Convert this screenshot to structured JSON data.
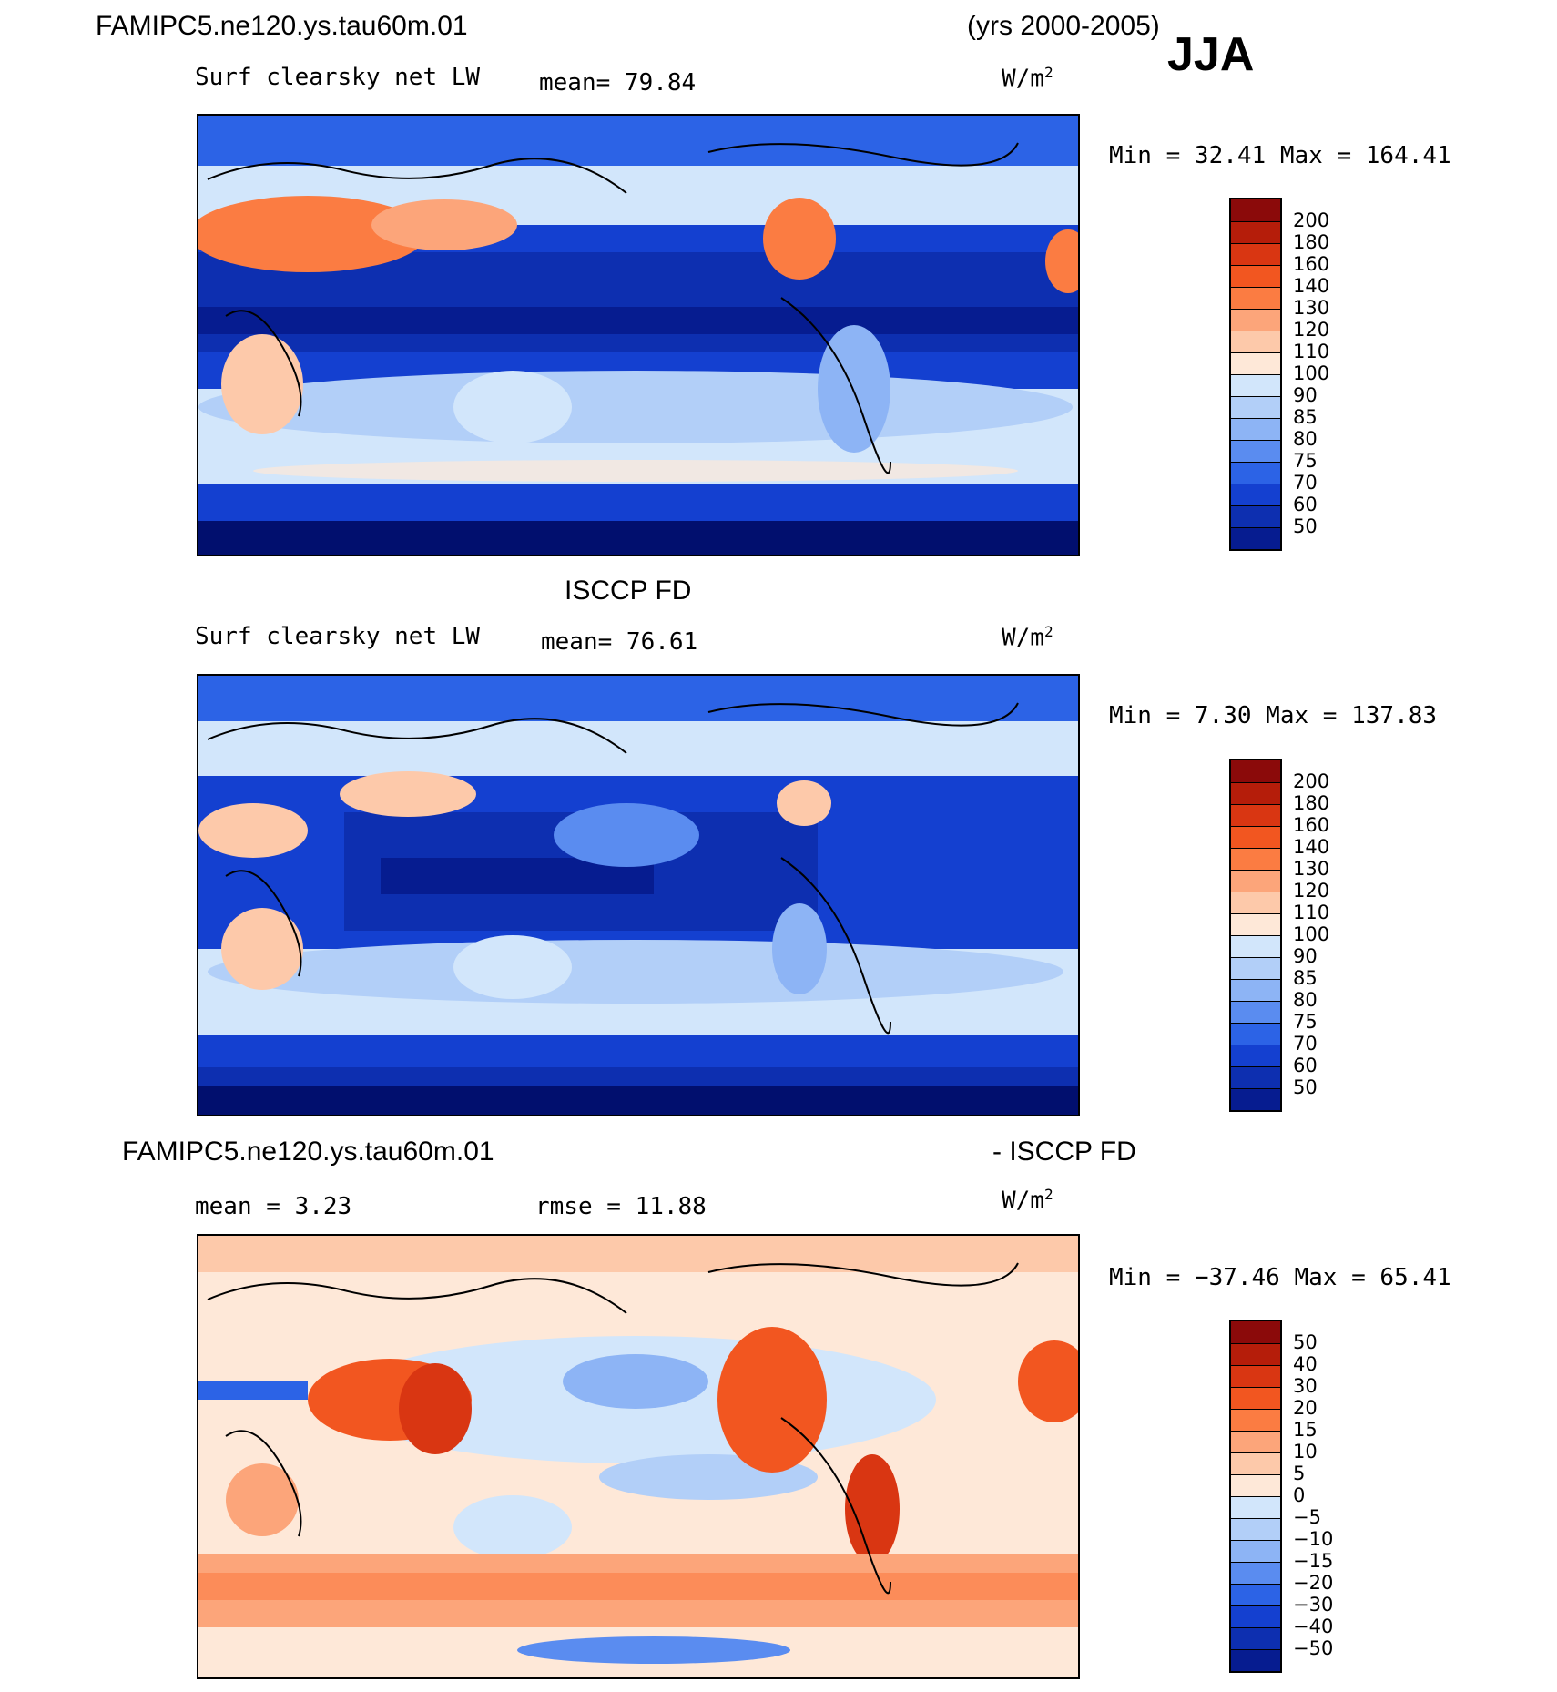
{
  "header": {
    "case_name": "FAMIPC5.ne120.ys.tau60m.01",
    "years": "(yrs 2000-2005)",
    "season": "JJA"
  },
  "panels": [
    {
      "title": "",
      "variable": "Surf clearsky net LW",
      "mean_text": "mean=   79.84",
      "units": "W/m",
      "units_sup": "2",
      "minmax_text": "Min =   32.41  Max = 164.41"
    },
    {
      "title": "ISCCP FD",
      "variable": "Surf clearsky net LW",
      "mean_text": "mean=   76.61",
      "units": "W/m",
      "units_sup": "2",
      "minmax_text": "Min =    7.30  Max = 137.83"
    },
    {
      "title_left": "FAMIPC5.ne120.ys.tau60m.01",
      "title_right": "- ISCCP FD",
      "mean_text": "mean =    3.23",
      "rmse_text": "rmse =   11.88",
      "units": "W/m",
      "units_sup": "2",
      "minmax_text": "Min = −37.46  Max =   65.41"
    }
  ],
  "colorbars": {
    "abs_labels": [
      "200",
      "180",
      "160",
      "140",
      "130",
      "120",
      "110",
      "100",
      "90",
      "85",
      "80",
      "75",
      "70",
      "60",
      "50"
    ],
    "diff_labels": [
      "50",
      "40",
      "30",
      "20",
      "15",
      "10",
      "5",
      "0",
      "−5",
      "−10",
      "−15",
      "−20",
      "−30",
      "−40",
      "−50"
    ],
    "colors": [
      "#8b0a0a",
      "#b51d0a",
      "#d93612",
      "#f25620",
      "#fb7c42",
      "#fca57a",
      "#fdc9aa",
      "#fee8d8",
      "#ffffff",
      "#d2e6fb",
      "#b2cff8",
      "#8db4f5",
      "#5a8cf0",
      "#2c63e6",
      "#1440d0",
      "#0d2fb0",
      "#061c90",
      "#010f6e"
    ],
    "abs_colors": [
      "#8b0a0a",
      "#b51d0a",
      "#d93612",
      "#f25620",
      "#fb7c42",
      "#fca57a",
      "#fdc9aa",
      "#fee8d8",
      "#d2e6fb",
      "#b2cff8",
      "#8db4f5",
      "#5a8cf0",
      "#2c63e6",
      "#1440d0",
      "#0d2fb0",
      "#061c90"
    ],
    "diff_colors": [
      "#8b0a0a",
      "#b51d0a",
      "#d93612",
      "#f25620",
      "#fb7c42",
      "#fca57a",
      "#fdc9aa",
      "#fee8d8",
      "#d2e6fb",
      "#b2cff8",
      "#8db4f5",
      "#5a8cf0",
      "#2c63e6",
      "#1440d0",
      "#0d2fb0",
      "#061c90"
    ]
  },
  "chart_data": [
    {
      "type": "heatmap",
      "title": "FAMIPC5.ne120.ys.tau60m.01 (yrs 2000-2005) JJA",
      "variable": "Surf clearsky net LW",
      "units": "W/m^2",
      "mean": 79.84,
      "min": 32.41,
      "max": 164.41,
      "contour_levels": [
        50,
        60,
        70,
        75,
        80,
        85,
        90,
        100,
        110,
        120,
        130,
        140,
        160,
        180,
        200
      ]
    },
    {
      "type": "heatmap",
      "title": "ISCCP FD",
      "variable": "Surf clearsky net LW",
      "units": "W/m^2",
      "mean": 76.61,
      "min": 7.3,
      "max": 137.83,
      "contour_levels": [
        50,
        60,
        70,
        75,
        80,
        85,
        90,
        100,
        110,
        120,
        130,
        140,
        160,
        180,
        200
      ]
    },
    {
      "type": "heatmap",
      "title": "FAMIPC5.ne120.ys.tau60m.01 - ISCCP FD",
      "units": "W/m^2",
      "mean": 3.23,
      "rmse": 11.88,
      "min": -37.46,
      "max": 65.41,
      "contour_levels": [
        -50,
        -40,
        -30,
        -20,
        -15,
        -10,
        -5,
        0,
        5,
        10,
        15,
        20,
        30,
        40,
        50
      ]
    }
  ]
}
